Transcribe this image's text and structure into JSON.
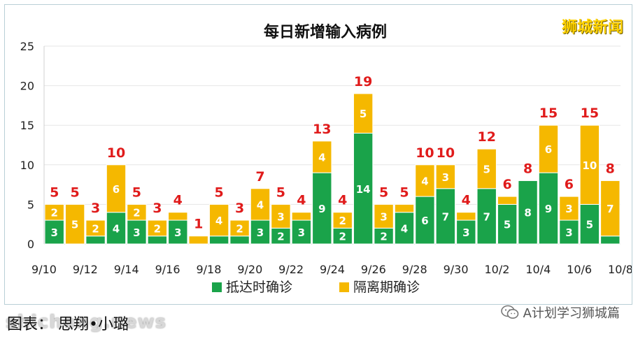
{
  "brand": "狮城新闻",
  "caption": "图表： 思翔•小璐",
  "site_watermark": "shicheng.news",
  "wechat_label": "A计划学习狮城篇",
  "colors": {
    "arrival": "#1aa34a",
    "quarantine": "#f5b800",
    "total_label": "#e01b1b",
    "grid": "#e6e6e6"
  },
  "chart_data": {
    "type": "bar",
    "stacked": true,
    "title": "每日新增输入病例",
    "xlabel": "",
    "ylabel": "",
    "ylim": [
      0,
      25
    ],
    "yticks": [
      0,
      5,
      10,
      15,
      20,
      25
    ],
    "grid": true,
    "legend_position": "bottom",
    "categories": [
      "9/10",
      "9/11",
      "9/12",
      "9/13",
      "9/14",
      "9/15",
      "9/16",
      "9/17",
      "9/18",
      "9/19",
      "9/20",
      "9/21",
      "9/22",
      "9/23",
      "9/24",
      "9/25",
      "9/26",
      "9/27",
      "9/28",
      "9/29",
      "9/30",
      "10/1",
      "10/2",
      "10/3",
      "10/4",
      "10/5",
      "10/6",
      "10/7"
    ],
    "xtick_labels": [
      "9/10",
      "9/12",
      "9/14",
      "9/16",
      "9/18",
      "9/20",
      "9/22",
      "9/24",
      "9/26",
      "9/28",
      "9/30",
      "10/2",
      "10/4",
      "10/6",
      "10/8"
    ],
    "series": [
      {
        "name": "抵达时确诊",
        "values": [
          3,
          0,
          1,
          4,
          3,
          1,
          3,
          0,
          1,
          1,
          3,
          2,
          3,
          9,
          2,
          14,
          2,
          4,
          6,
          7,
          3,
          7,
          5,
          8,
          9,
          3,
          5,
          1
        ]
      },
      {
        "name": "隔离期确诊",
        "values": [
          2,
          5,
          2,
          6,
          2,
          2,
          1,
          1,
          4,
          2,
          4,
          3,
          1,
          4,
          2,
          5,
          3,
          1,
          4,
          3,
          1,
          5,
          1,
          0,
          6,
          3,
          10,
          7
        ]
      }
    ],
    "totals": [
      5,
      5,
      3,
      10,
      5,
      3,
      4,
      1,
      5,
      3,
      7,
      5,
      4,
      13,
      4,
      19,
      5,
      5,
      10,
      10,
      4,
      12,
      6,
      8,
      15,
      6,
      15,
      8
    ]
  }
}
